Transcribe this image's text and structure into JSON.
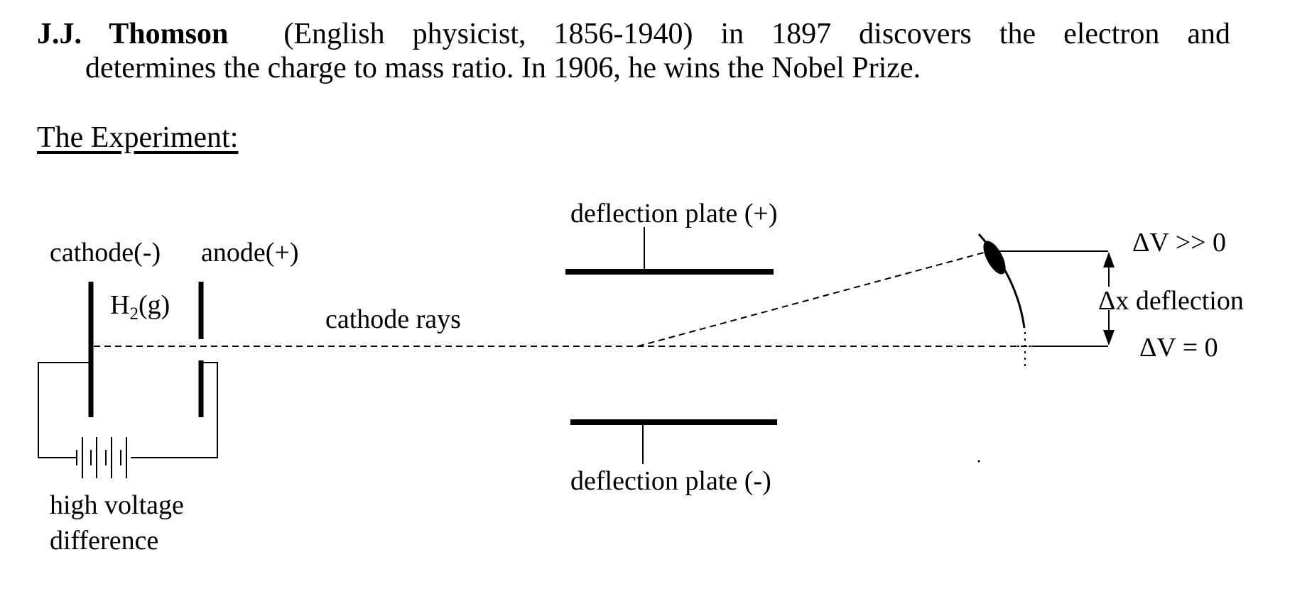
{
  "intro": {
    "name": "J.J. Thomson",
    "line1_rest": "(English physicist, 1856-1940) in 1897 discovers the electron and",
    "line2": "determines the charge to mass ratio.  In 1906, he wins the Nobel Prize."
  },
  "section_title": "The Experiment:",
  "diagram": {
    "cathode_label": "cathode(-)",
    "anode_label": "anode(+)",
    "gas_symbol": "H",
    "gas_subscript": "2",
    "gas_state": "(g)",
    "rays_label": "cathode rays",
    "plate_top_label": "deflection plate (+)",
    "plate_bottom_label": "deflection plate (-)",
    "battery_label_line1": "high voltage",
    "battery_label_line2": "difference",
    "high_voltage_label": "ΔV >> 0",
    "deflection_label": "Δx deflection",
    "zero_voltage_label": "ΔV = 0"
  }
}
